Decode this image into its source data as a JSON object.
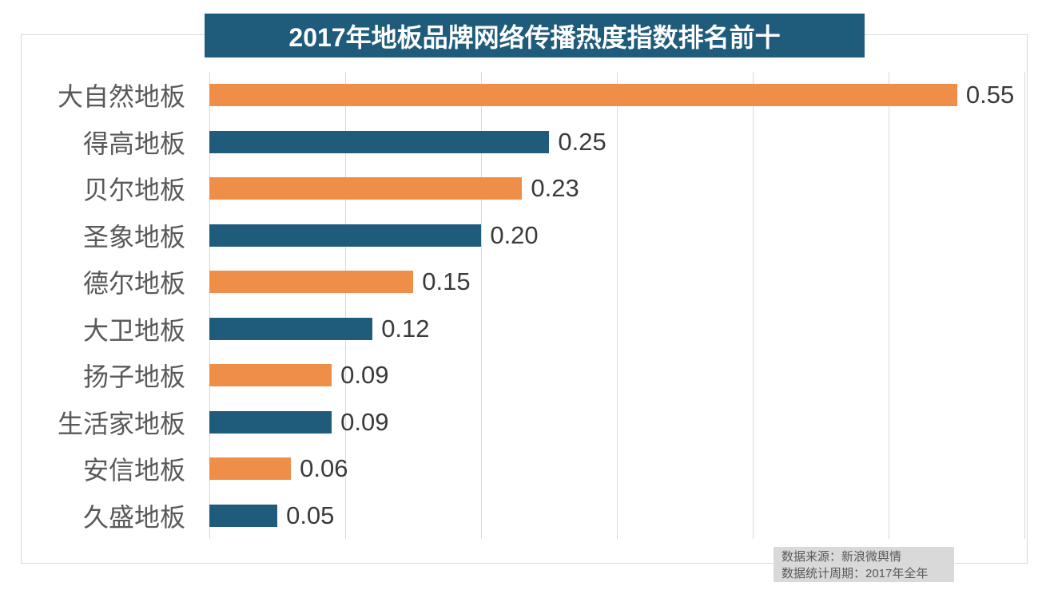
{
  "title": "2017年地板品牌网络传播热度指数排名前十",
  "footer": {
    "source_line": "数据来源：新浪微舆情",
    "period_line": "数据统计周期：2017年全年"
  },
  "colors": {
    "orange": "#EF8E49",
    "blue": "#1F5B7B",
    "grid": "#D9D9D9",
    "label": "#595959",
    "value": "#3A3A3A",
    "title_bg": "#1F5B7B",
    "title_text": "#FFFFFF",
    "footer_bg": "#D9D9D9",
    "footer_text": "#595959"
  },
  "chart_data": {
    "type": "bar",
    "orientation": "horizontal",
    "title": "2017年地板品牌网络传播热度指数排名前十",
    "categories": [
      "大自然地板",
      "得高地板",
      "贝尔地板",
      "圣象地板",
      "德尔地板",
      "大卫地板",
      "扬子地板",
      "生活家地板",
      "安信地板",
      "久盛地板"
    ],
    "values": [
      0.55,
      0.25,
      0.23,
      0.2,
      0.15,
      0.12,
      0.09,
      0.09,
      0.06,
      0.05
    ],
    "value_labels": [
      "0.55",
      "0.25",
      "0.23",
      "0.20",
      "0.15",
      "0.12",
      "0.09",
      "0.09",
      "0.06",
      "0.05"
    ],
    "xlim": [
      0,
      0.6
    ],
    "grid_interval": 0.1,
    "grid": true,
    "legend": false,
    "bar_color_pattern": [
      "orange",
      "blue"
    ],
    "xlabel": "",
    "ylabel": ""
  }
}
